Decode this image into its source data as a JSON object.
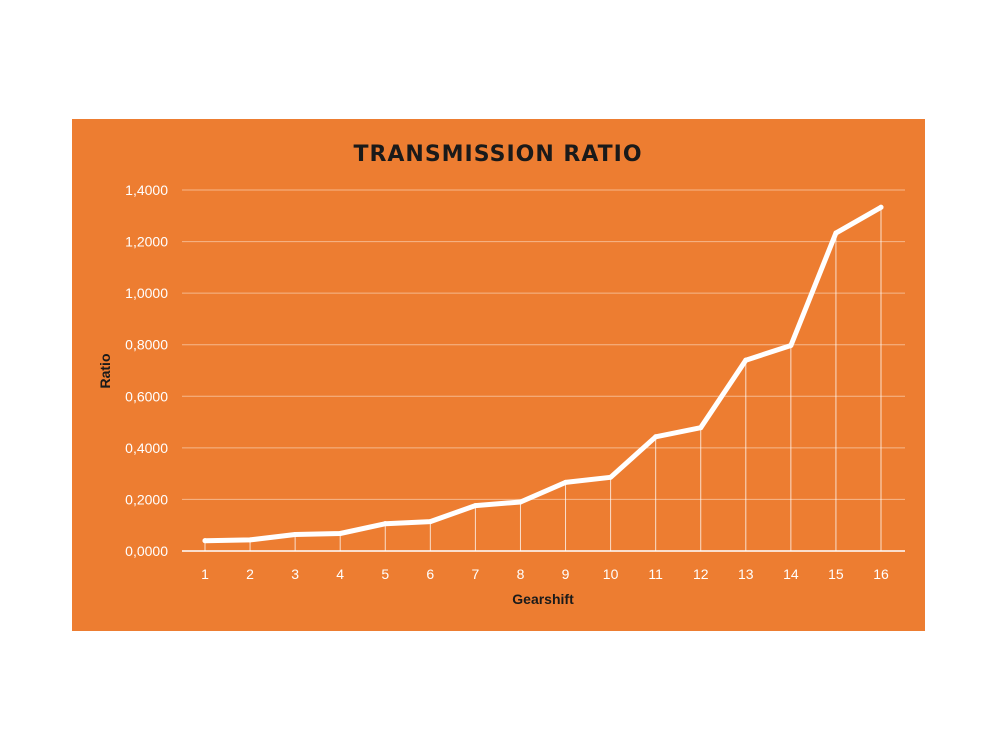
{
  "colors": {
    "panel": "#ED7D31",
    "line": "#FFFFFF",
    "grid": "#F6B88C",
    "text_dark": "#1A1A1A",
    "tick_text": "#FFFFFF"
  },
  "chart_data": {
    "type": "line",
    "title": "TRANSMISSION RATIO",
    "xlabel": "Gearshift",
    "ylabel": "Ratio",
    "categories": [
      "1",
      "2",
      "3",
      "4",
      "5",
      "6",
      "7",
      "8",
      "9",
      "10",
      "11",
      "12",
      "13",
      "14",
      "15",
      "16"
    ],
    "y_ticks": [
      "0,0000",
      "0,2000",
      "0,4000",
      "0,6000",
      "0,8000",
      "1,0000",
      "1,2000",
      "1,4000"
    ],
    "ylim": [
      0,
      1.4
    ],
    "grid": true,
    "drop_lines": true,
    "series": [
      {
        "values": [
          0.04,
          0.043,
          0.064,
          0.068,
          0.106,
          0.114,
          0.176,
          0.19,
          0.266,
          0.286,
          0.443,
          0.478,
          0.74,
          0.797,
          1.233,
          1.333
        ]
      }
    ]
  }
}
